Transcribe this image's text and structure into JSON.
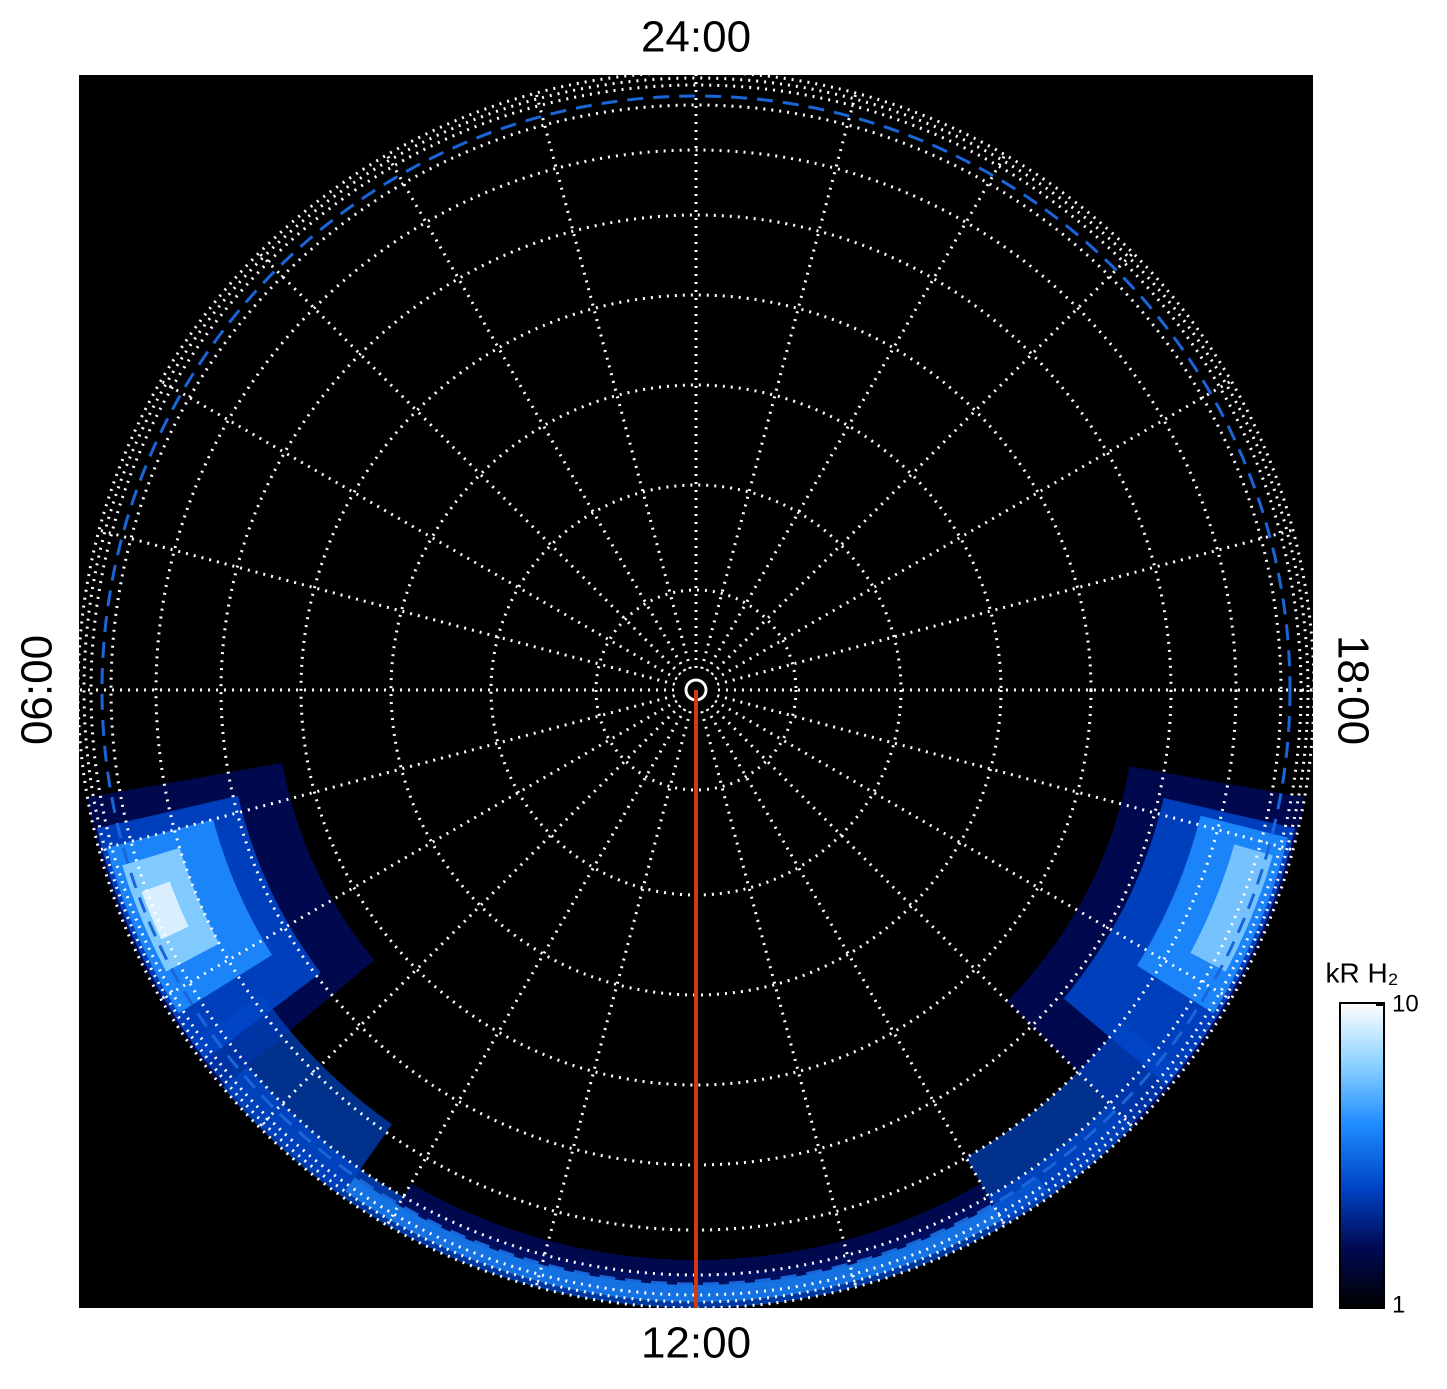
{
  "chart_data": {
    "type": "polar-image",
    "direction_labels": {
      "top": "24:00",
      "bottom": "12:00",
      "left": "06:00",
      "right": "18:00"
    },
    "colorbar": {
      "label": "kR H₂",
      "clim": [
        1,
        10
      ],
      "ticks": [
        1,
        10
      ],
      "log": true,
      "colors": [
        "#000000",
        "#000a55",
        "#0046c8",
        "#1e8cff",
        "#8cd2ff",
        "#ffffff"
      ]
    }
  }
}
